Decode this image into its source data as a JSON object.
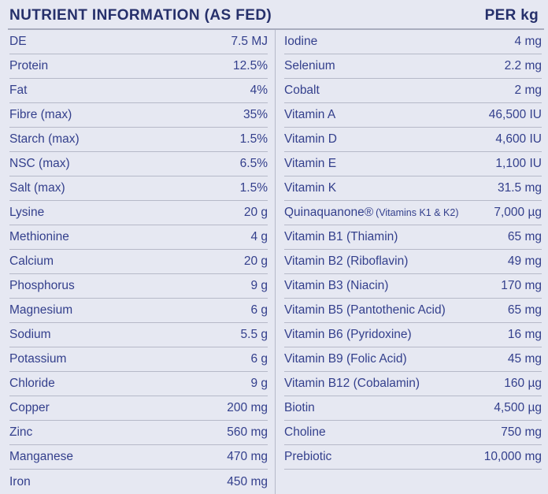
{
  "header": {
    "title": "NUTRIENT INFORMATION (AS FED)",
    "unit_label": "PER kg"
  },
  "colors": {
    "background": "#e6e8f2",
    "header_text": "#26306b",
    "row_text": "#333f8c",
    "divider": "#b6b9c8",
    "header_rule": "#a9adbe"
  },
  "table": {
    "left_rows": [
      {
        "label": "DE",
        "value": "7.5 MJ"
      },
      {
        "label": "Protein",
        "value": "12.5%"
      },
      {
        "label": "Fat",
        "value": "4%"
      },
      {
        "label": "Fibre (max)",
        "value": "35%"
      },
      {
        "label": "Starch (max)",
        "value": "1.5%"
      },
      {
        "label": "NSC (max)",
        "value": "6.5%"
      },
      {
        "label": "Salt (max)",
        "value": "1.5%"
      },
      {
        "label": "Lysine",
        "value": "20 g"
      },
      {
        "label": "Methionine",
        "value": "4 g"
      },
      {
        "label": "Calcium",
        "value": "20 g"
      },
      {
        "label": "Phosphorus",
        "value": "9 g"
      },
      {
        "label": "Magnesium",
        "value": "6 g"
      },
      {
        "label": "Sodium",
        "value": "5.5 g"
      },
      {
        "label": "Potassium",
        "value": "6 g"
      },
      {
        "label": "Chloride",
        "value": "9 g"
      },
      {
        "label": "Copper",
        "value": "200 mg"
      },
      {
        "label": "Zinc",
        "value": "560 mg"
      },
      {
        "label": "Manganese",
        "value": "470 mg"
      },
      {
        "label": "Iron",
        "value": "450 mg"
      }
    ],
    "right_rows": [
      {
        "label": "Iodine",
        "value": "4 mg"
      },
      {
        "label": "Selenium",
        "value": "2.2 mg"
      },
      {
        "label": "Cobalt",
        "value": "2 mg"
      },
      {
        "label": "Vitamin A",
        "value": "46,500 IU"
      },
      {
        "label": "Vitamin D",
        "value": "4,600 IU"
      },
      {
        "label": "Vitamin E",
        "value": "1,100 IU"
      },
      {
        "label": "Vitamin K",
        "value": "31.5 mg"
      },
      {
        "label": "Quinaquanone®",
        "note": "(Vitamins K1 & K2)",
        "value": "7,000 µg"
      },
      {
        "label": "Vitamin B1 (Thiamin)",
        "value": "65 mg"
      },
      {
        "label": "Vitamin B2 (Riboflavin)",
        "value": "49 mg"
      },
      {
        "label": "Vitamin B3 (Niacin)",
        "value": "170 mg"
      },
      {
        "label": "Vitamin B5 (Pantothenic Acid)",
        "value": "65 mg"
      },
      {
        "label": "Vitamin B6 (Pyridoxine)",
        "value": "16 mg"
      },
      {
        "label": "Vitamin B9 (Folic Acid)",
        "value": "45 mg"
      },
      {
        "label": "Vitamin B12 (Cobalamin)",
        "value": "160 µg"
      },
      {
        "label": "Biotin",
        "value": "4,500 µg"
      },
      {
        "label": "Choline",
        "value": "750 mg"
      },
      {
        "label": "Prebiotic",
        "value": "10,000 mg"
      }
    ]
  }
}
